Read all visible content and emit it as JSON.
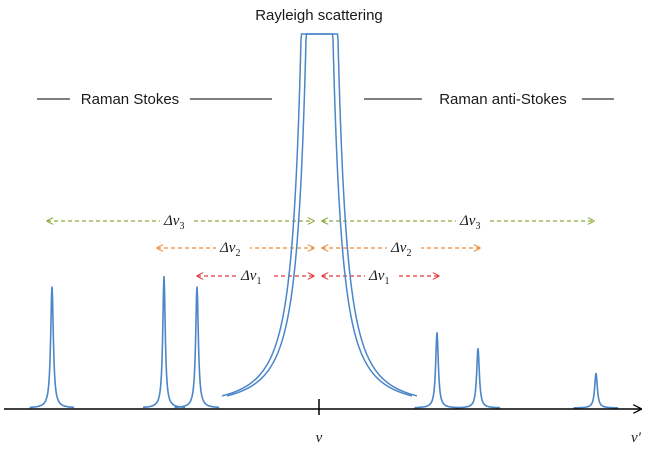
{
  "title": "Rayleigh scattering",
  "stokes_label": "Raman Stokes",
  "anti_stokes_label": "Raman anti-Stokes",
  "x_center_label": "ν",
  "x_axis_label": "ν′",
  "shifts": [
    {
      "symbol": "Δν",
      "subscript": "3",
      "color": "#8aa83a"
    },
    {
      "symbol": "Δν",
      "subscript": "2",
      "color": "#f08a38"
    },
    {
      "symbol": "Δν",
      "subscript": "1",
      "color": "#e03a3a"
    }
  ],
  "colors": {
    "spectrum": "#4a86c8",
    "axis": "#000000"
  }
}
